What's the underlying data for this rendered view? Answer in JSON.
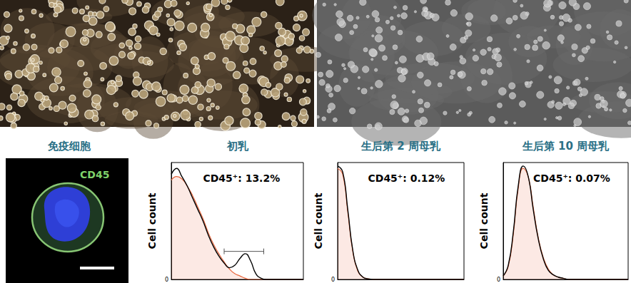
{
  "cell_image": {
    "title": "免疫细胞",
    "label": "CD45"
  },
  "chart_data": [
    {
      "type": "line",
      "title": "初乳",
      "ylabel": "Cell count",
      "annotation": "CD45⁺: 13.2%",
      "gate": {
        "x": [
          40,
          70
        ],
        "y": 24
      },
      "x": [
        0,
        4,
        8,
        12,
        16,
        20,
        24,
        28,
        32,
        36,
        40,
        44,
        48,
        52,
        56,
        60,
        64,
        68,
        72,
        76,
        80,
        84,
        88,
        92,
        96,
        100
      ],
      "series": [
        {
          "type": "area",
          "color": "#e8663d",
          "values": [
            85,
            88,
            86,
            80,
            72,
            62,
            52,
            40,
            30,
            22,
            15,
            9,
            5,
            3,
            1,
            0,
            0,
            0,
            0,
            0,
            0,
            0,
            0,
            0,
            0,
            0
          ]
        },
        {
          "type": "line",
          "color": "#000000",
          "values": [
            90,
            95,
            88,
            80,
            70,
            60,
            50,
            38,
            28,
            20,
            14,
            10,
            12,
            18,
            22,
            16,
            5,
            1,
            0,
            0,
            0,
            0,
            0,
            0,
            0,
            0
          ]
        }
      ],
      "xlim": [
        0,
        100
      ],
      "ylim": [
        0,
        100
      ],
      "yticks": [
        0
      ],
      "tick_labels": "y",
      "grid": false
    },
    {
      "type": "line",
      "title": "生后第 2 周母乳",
      "ylabel": "Cell count",
      "annotation": "CD45⁺: 0.12%",
      "x": [
        0,
        4,
        8,
        12,
        16,
        20,
        24,
        28,
        32,
        36,
        40,
        44,
        48,
        52,
        56,
        60,
        64,
        68,
        72,
        76,
        80,
        84,
        88,
        92,
        96,
        100
      ],
      "series": [
        {
          "type": "area",
          "color": "#e8663d",
          "values": [
            95,
            90,
            58,
            24,
            7,
            2,
            0.5,
            0,
            0,
            0,
            0,
            0,
            0,
            0,
            0,
            0,
            0,
            0,
            0,
            0,
            0,
            0,
            0,
            0,
            0,
            0
          ]
        },
        {
          "type": "line",
          "color": "#000000",
          "values": [
            97,
            92,
            60,
            25,
            8,
            2,
            0.5,
            0,
            0,
            0,
            0,
            0,
            0,
            0,
            0,
            0,
            0,
            0,
            0,
            0,
            0,
            0,
            0,
            0,
            0,
            0
          ]
        }
      ],
      "xlim": [
        0,
        100
      ],
      "ylim": [
        0,
        100
      ],
      "yticks": [
        0
      ],
      "tick_labels": "y",
      "grid": false
    },
    {
      "type": "line",
      "title": "生后第 10 周母乳",
      "ylabel": "Cell count",
      "annotation": "CD45⁺: 0.07%",
      "x": [
        0,
        4,
        8,
        12,
        16,
        20,
        24,
        28,
        32,
        36,
        40,
        44,
        48,
        52,
        56,
        60,
        64,
        68,
        72,
        76,
        80,
        84,
        88,
        92,
        96,
        100
      ],
      "series": [
        {
          "type": "area",
          "color": "#e8663d",
          "values": [
            3,
            11,
            38,
            78,
            95,
            88,
            62,
            36,
            19,
            9,
            4,
            2,
            1,
            0,
            0,
            0,
            0,
            0,
            0,
            0,
            0,
            0,
            0,
            0,
            0,
            0
          ]
        },
        {
          "type": "line",
          "color": "#000000",
          "values": [
            3,
            12,
            40,
            80,
            97,
            88,
            60,
            35,
            18,
            8,
            4,
            2,
            1,
            0,
            0,
            0,
            0,
            0,
            0,
            0,
            0,
            0,
            0,
            0,
            0,
            0
          ]
        }
      ],
      "xlim": [
        0,
        100
      ],
      "ylim": [
        0,
        100
      ],
      "yticks": [
        0
      ],
      "tick_labels": "y",
      "grid": false
    }
  ]
}
